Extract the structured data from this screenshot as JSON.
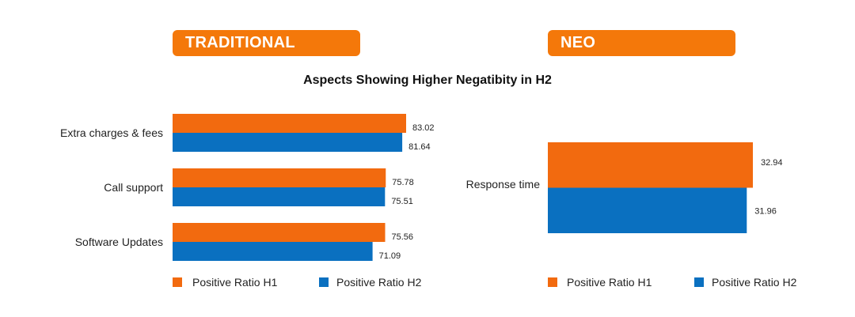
{
  "colors": {
    "h1": "#f26a0f",
    "h2": "#0a70c0",
    "header": "#f4780a"
  },
  "headers": {
    "left": "TRADITIONAL",
    "right": "NEO"
  },
  "title": "Aspects Showing Higher Negatibity in H2",
  "chart_data": [
    {
      "type": "bar",
      "orientation": "horizontal",
      "panel": "TRADITIONAL",
      "categories": [
        "Extra charges & fees",
        "Call support",
        "Software Updates"
      ],
      "series": [
        {
          "name": "Positive Ratio H1",
          "values": [
            83.02,
            75.78,
            75.56
          ]
        },
        {
          "name": "Positive Ratio H2",
          "values": [
            81.64,
            75.51,
            71.09
          ]
        }
      ],
      "legend": "bottom"
    },
    {
      "type": "bar",
      "orientation": "horizontal",
      "panel": "NEO",
      "categories": [
        "Response time"
      ],
      "series": [
        {
          "name": "Positive Ratio H1",
          "values": [
            32.94
          ]
        },
        {
          "name": "Positive Ratio H2",
          "values": [
            31.96
          ]
        }
      ],
      "legend": "bottom"
    }
  ]
}
